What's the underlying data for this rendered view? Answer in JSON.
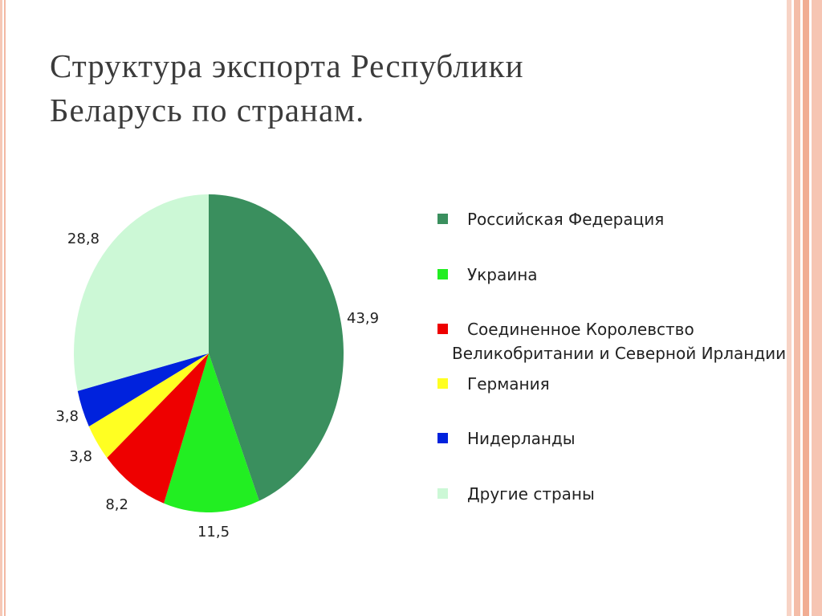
{
  "title_lines": [
    "Структура экспорта Республики",
    "Беларусь по странам."
  ],
  "chart_data": {
    "type": "pie",
    "categories": [
      "Российская Федерация",
      "Украина",
      "Соединенное Королевство Великобритании и Северной Ирландии",
      "Германия",
      "Нидерланды",
      "Другие страны"
    ],
    "legend_lines": [
      [
        "Российская Федерация"
      ],
      [
        "Украина"
      ],
      [
        "Соединенное Королевство",
        "Великобритании и Северной Ирландии"
      ],
      [
        "Германия"
      ],
      [
        "Нидерланды"
      ],
      [
        "Другие страны"
      ]
    ],
    "values": [
      43.9,
      11.5,
      8.2,
      3.8,
      3.8,
      28.8
    ],
    "value_labels": [
      "43,9",
      "11,5",
      "8,2",
      "3,8",
      "3,8",
      "28,8"
    ],
    "colors": [
      "#3a8f5e",
      "#22ee22",
      "#ee0000",
      "#ffff22",
      "#0022dd",
      "#ccf8d6"
    ],
    "legend_position": "right"
  }
}
